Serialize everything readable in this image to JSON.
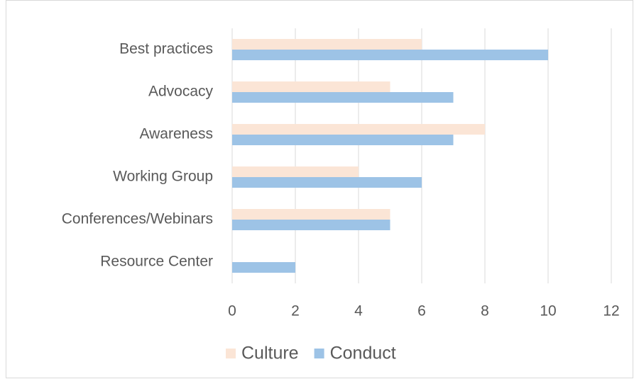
{
  "chart_data": {
    "type": "hbar",
    "categories": [
      "Best practices",
      "Advocacy",
      "Awareness",
      "Working Group",
      "Conferences/Webinars",
      "Resource Center"
    ],
    "series": [
      {
        "name": "Culture",
        "color": "#fbe5d6",
        "values": [
          6,
          5,
          8,
          4,
          5,
          0
        ]
      },
      {
        "name": "Conduct",
        "color": "#9dc3e6",
        "values": [
          10,
          7,
          7,
          6,
          5,
          2
        ]
      }
    ],
    "xlim": [
      0,
      12
    ],
    "xticks": [
      0,
      2,
      4,
      6,
      8,
      10,
      12
    ],
    "grid": true,
    "legend": "bottom"
  }
}
